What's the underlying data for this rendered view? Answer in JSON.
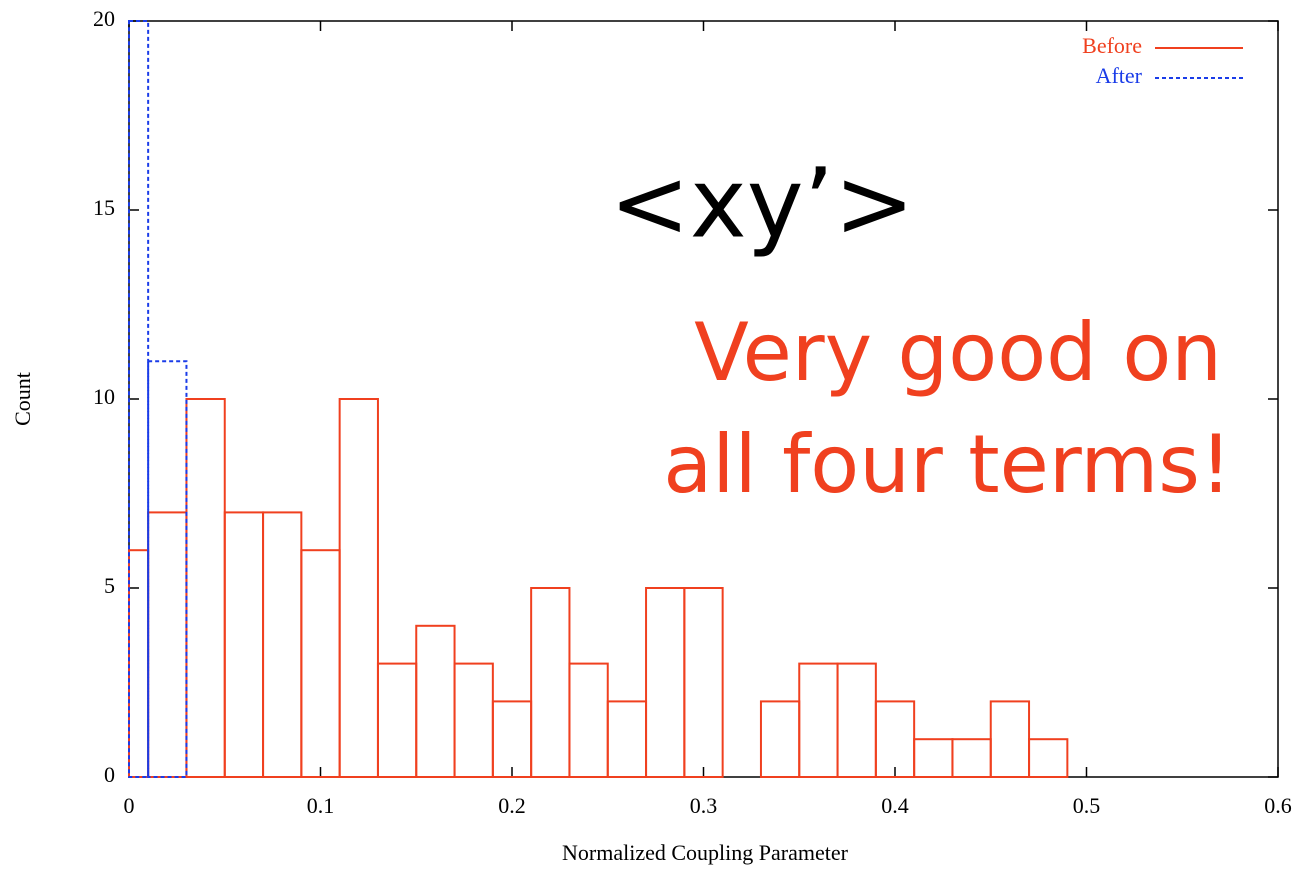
{
  "chart_data": {
    "type": "histogram",
    "xlabel": "Normalized Coupling Parameter",
    "ylabel": "Count",
    "xlim": [
      0,
      0.6
    ],
    "ylim": [
      0,
      20
    ],
    "xticks": [
      0,
      0.1,
      0.2,
      0.3,
      0.4,
      0.5,
      0.6
    ],
    "yticks": [
      0,
      5,
      10,
      15,
      20
    ],
    "legend": "upper right",
    "series": [
      {
        "name": "Before",
        "color": "#f0401f",
        "dash": false,
        "bins": [
          0,
          0.01,
          0.03,
          0.05,
          0.07,
          0.09,
          0.11,
          0.13,
          0.15,
          0.17,
          0.19,
          0.21,
          0.23,
          0.25,
          0.27,
          0.29,
          0.31,
          0.33,
          0.35,
          0.37,
          0.39,
          0.41,
          0.43,
          0.45,
          0.47,
          0.49
        ],
        "values": [
          6,
          7,
          10,
          7,
          7,
          6,
          10,
          3,
          4,
          3,
          2,
          5,
          3,
          2,
          5,
          5,
          0,
          2,
          3,
          3,
          2,
          1,
          1,
          2,
          1
        ]
      },
      {
        "name": "After",
        "color": "#1a3ce8",
        "dash": true,
        "bins": [
          0,
          0.01,
          0.03
        ],
        "values": [
          20,
          11
        ]
      }
    ],
    "annotations": [
      "<xy’>",
      "Very good on",
      "all four terms!"
    ]
  }
}
